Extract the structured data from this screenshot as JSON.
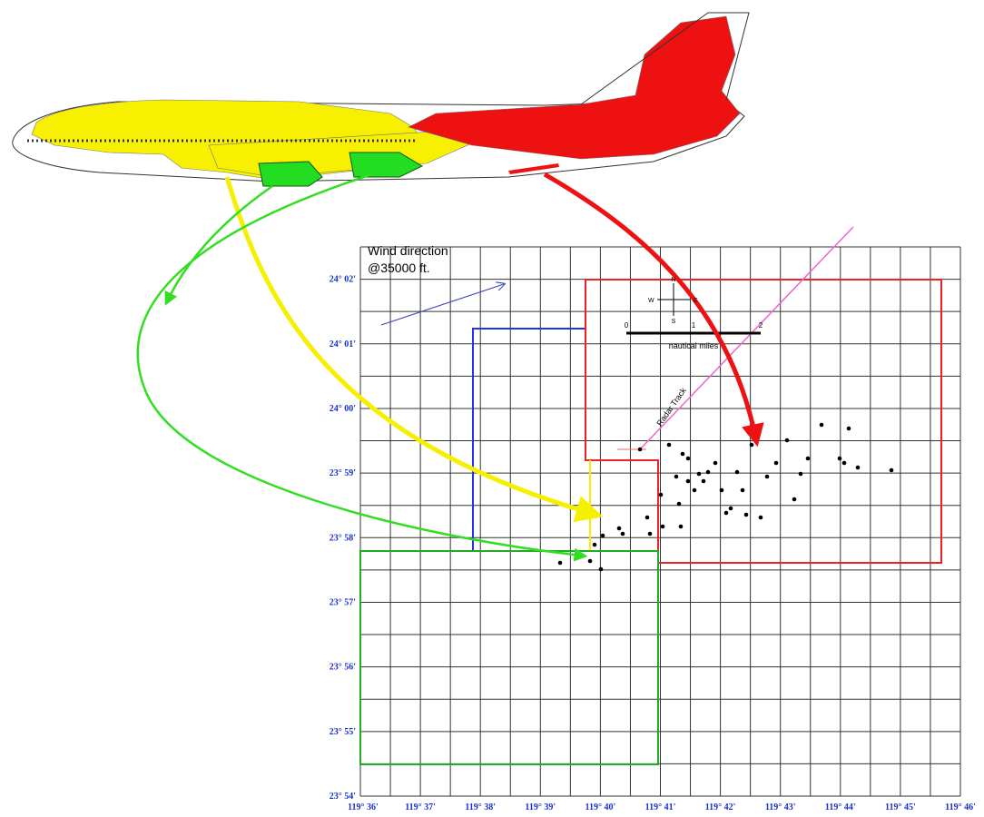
{
  "wind": {
    "line1": "Wind direction",
    "line2": "@35000 ft."
  },
  "lat_labels": [
    "24° 02'",
    "24° 01'",
    "24° 00'",
    "23° 59'",
    "23° 58'",
    "23° 57'",
    "23° 56'",
    "23° 55'",
    "23° 54'"
  ],
  "lon_labels": [
    "119° 36'",
    "119° 37'",
    "119° 38'",
    "119° 39'",
    "119° 40'",
    "119° 41'",
    "119° 42'",
    "119° 43'",
    "119° 44'",
    "119° 45'",
    "119° 46'"
  ],
  "radar": "Radar Track",
  "scale": {
    "title": "nautical miles",
    "ticks": [
      "0",
      "1",
      "2"
    ]
  },
  "compass": {
    "n": "N",
    "s": "S",
    "e": "E",
    "w": "W"
  }
}
